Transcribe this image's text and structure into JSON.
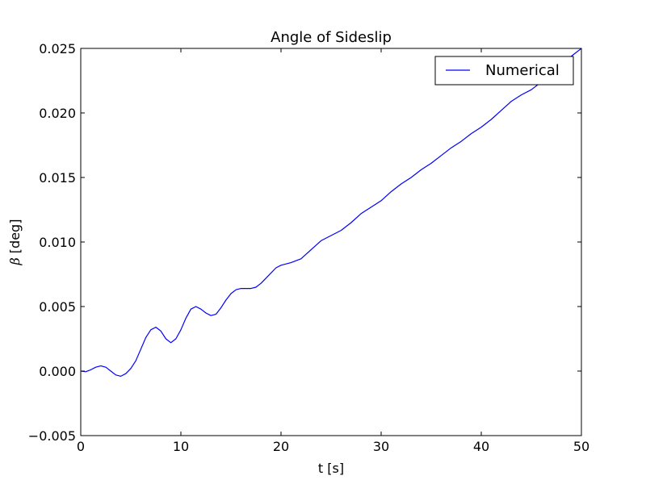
{
  "chart_data": {
    "type": "line",
    "title": "Angle of Sideslip",
    "xlabel": "t [s]",
    "ylabel_symbol": "β",
    "ylabel_unit": "[deg]",
    "xlim": [
      0,
      50
    ],
    "ylim": [
      -0.005,
      0.025
    ],
    "x_ticks": [
      0,
      10,
      20,
      30,
      40,
      50
    ],
    "x_tick_labels": [
      "0",
      "10",
      "20",
      "30",
      "40",
      "50"
    ],
    "y_ticks": [
      -0.005,
      0.0,
      0.005,
      0.01,
      0.015,
      0.02,
      0.025
    ],
    "y_tick_labels": [
      "−0.005",
      "0.000",
      "0.005",
      "0.010",
      "0.015",
      "0.020",
      "0.025"
    ],
    "grid": false,
    "legend_position": "top-right",
    "series": [
      {
        "name": "Numerical",
        "color": "#0000ff",
        "x": [
          0,
          0.5,
          1,
          1.5,
          2,
          2.5,
          3,
          3.5,
          4,
          4.5,
          5,
          5.5,
          6,
          6.5,
          7,
          7.5,
          8,
          8.5,
          9,
          9.5,
          10,
          10.5,
          11,
          11.5,
          12,
          12.5,
          13,
          13.5,
          14,
          14.5,
          15,
          15.5,
          16,
          16.5,
          17,
          17.5,
          18,
          18.5,
          19,
          19.5,
          20,
          21,
          22,
          23,
          24,
          25,
          26,
          27,
          28,
          29,
          30,
          31,
          32,
          33,
          34,
          35,
          36,
          37,
          38,
          39,
          40,
          41,
          42,
          43,
          44,
          45,
          46,
          47,
          48,
          49,
          50
        ],
        "y": [
          0.0,
          -5e-05,
          0.0001,
          0.0003,
          0.0004,
          0.0003,
          0.0,
          -0.0003,
          -0.0004,
          -0.0002,
          0.0002,
          0.0008,
          0.0017,
          0.0026,
          0.0032,
          0.0034,
          0.0031,
          0.0025,
          0.0022,
          0.0025,
          0.0032,
          0.0041,
          0.0048,
          0.005,
          0.0048,
          0.0045,
          0.0043,
          0.0044,
          0.0049,
          0.0055,
          0.006,
          0.0063,
          0.0064,
          0.0064,
          0.0064,
          0.0065,
          0.0068,
          0.0072,
          0.0076,
          0.008,
          0.0082,
          0.0084,
          0.0087,
          0.0094,
          0.0101,
          0.0105,
          0.0109,
          0.0115,
          0.0122,
          0.0127,
          0.0132,
          0.0139,
          0.0145,
          0.015,
          0.0156,
          0.0161,
          0.0167,
          0.0173,
          0.0178,
          0.0184,
          0.0189,
          0.0195,
          0.0202,
          0.0209,
          0.0214,
          0.0218,
          0.0224,
          0.0232,
          0.0239,
          0.0244,
          0.025
        ]
      }
    ]
  }
}
